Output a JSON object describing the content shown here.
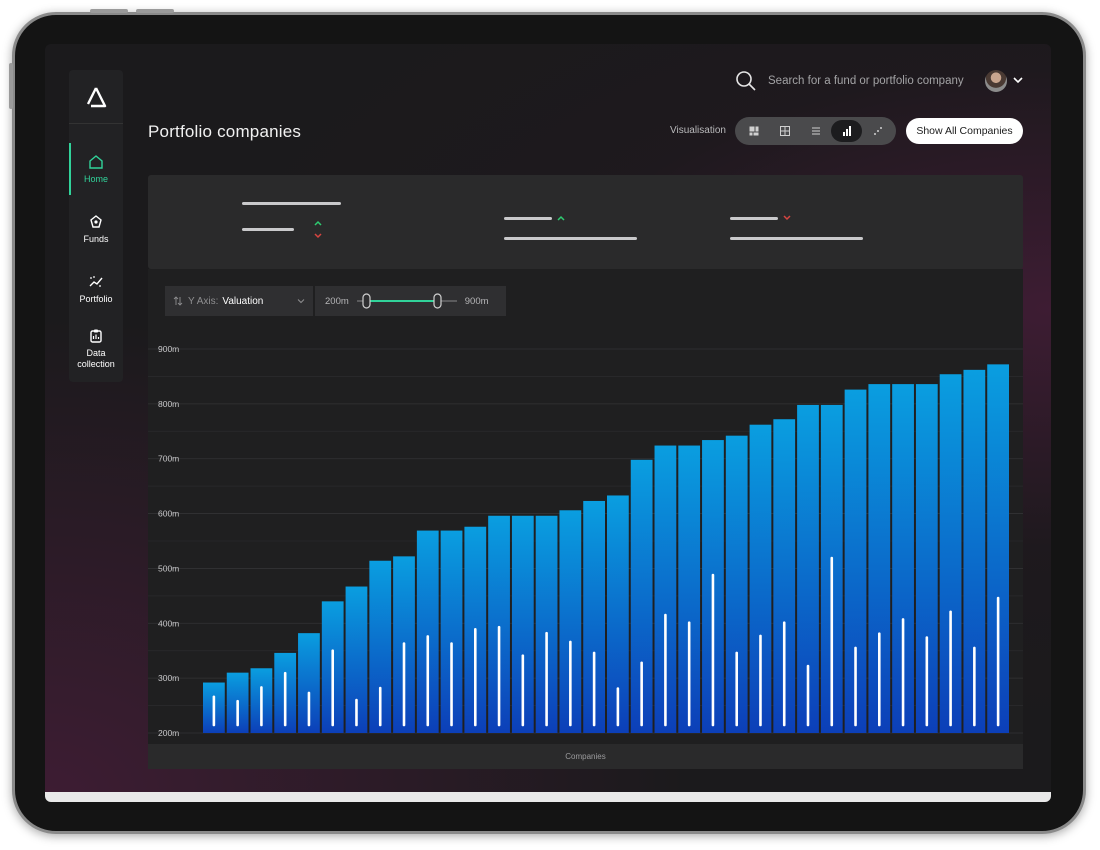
{
  "app": {
    "title": "Portfolio companies",
    "accent_color": "#31d39a",
    "logo_icon": "delta-logo-icon"
  },
  "sidebar": {
    "items": [
      {
        "label": "Home",
        "icon": "home-icon",
        "active": true
      },
      {
        "label": "Funds",
        "icon": "funds-icon",
        "active": false
      },
      {
        "label": "Portfolio",
        "icon": "portfolio-icon",
        "active": false
      },
      {
        "label": "Data collection",
        "icon": "clipboard-icon",
        "active": false
      }
    ]
  },
  "header": {
    "search_placeholder": "Search for a fund or portfolio company",
    "user_menu_icon": "chevron-down-icon"
  },
  "toolbar": {
    "visualisation_label": "Visualisation",
    "views": [
      "treemap-icon",
      "grid-icon",
      "list-icon",
      "bar-chart-icon",
      "scatter-icon"
    ],
    "active_view": "bar-chart-icon",
    "show_all_label": "Show All Companies"
  },
  "filters": {
    "y_axis_label": "Y Axis:",
    "y_axis_value": "Valuation",
    "range_min": "200m",
    "range_max": "900m"
  },
  "chart_data": {
    "type": "bar",
    "xlabel": "Companies",
    "ylabel": "",
    "ylim": [
      200,
      900
    ],
    "y_ticks": [
      "200m",
      "300m",
      "400m",
      "500m",
      "600m",
      "700m",
      "800m",
      "900m"
    ],
    "bar_color_top": "#0a9ee0",
    "bar_color_bottom": "#0c3fb8",
    "series": [
      {
        "values": [
          292,
          310,
          318,
          346,
          382,
          440,
          467,
          514,
          522,
          569,
          569,
          576,
          596,
          596,
          596,
          606,
          623,
          633,
          698,
          724,
          724,
          734,
          742,
          762,
          772,
          798,
          798,
          826,
          836,
          836,
          836,
          854,
          862,
          872
        ]
      },
      {
        "values": [
          266,
          258,
          283,
          309,
          273,
          350,
          260,
          282,
          363,
          376,
          363,
          389,
          393,
          341,
          382,
          366,
          346,
          281,
          328,
          415,
          401,
          488,
          346,
          377,
          401,
          322,
          519,
          355,
          381,
          407,
          374,
          421,
          355,
          446
        ]
      }
    ]
  }
}
